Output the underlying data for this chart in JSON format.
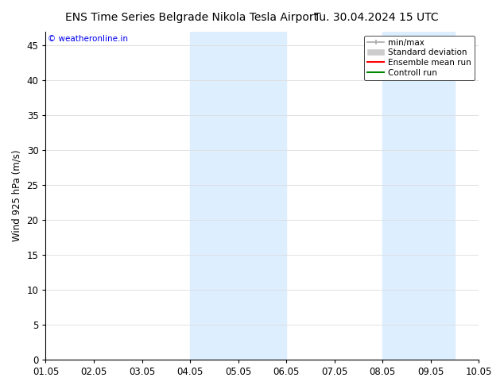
{
  "title_left": "ENS Time Series Belgrade Nikola Tesla Airport",
  "title_right": "Tu. 30.04.2024 15 UTC",
  "ylabel": "Wind 925 hPa (m/s)",
  "watermark": "© weatheronline.in",
  "watermark_color": "#0000ee",
  "xlim_start": 0,
  "xlim_end": 9,
  "ylim_bottom": 0,
  "ylim_top": 47,
  "yticks": [
    0,
    5,
    10,
    15,
    20,
    25,
    30,
    35,
    40,
    45
  ],
  "xtick_labels": [
    "01.05",
    "02.05",
    "03.05",
    "04.05",
    "05.05",
    "06.05",
    "07.05",
    "08.05",
    "09.05",
    "10.05"
  ],
  "background_color": "#ffffff",
  "plot_bg_color": "#ffffff",
  "shaded_regions": [
    {
      "x_start": 3.0,
      "x_end": 5.0,
      "color": "#ddeeff"
    },
    {
      "x_start": 7.0,
      "x_end": 8.5,
      "color": "#ddeeff"
    }
  ],
  "legend_items": [
    {
      "label": "min/max",
      "color": "#aaaaaa",
      "style": "minmax"
    },
    {
      "label": "Standard deviation",
      "color": "#cccccc",
      "style": "stddev"
    },
    {
      "label": "Ensemble mean run",
      "color": "#ff0000",
      "style": "line"
    },
    {
      "label": "Controll run",
      "color": "#008800",
      "style": "line"
    }
  ],
  "grid_color": "#dddddd",
  "tick_color": "#000000",
  "font_size": 8.5,
  "title_font_size": 10
}
